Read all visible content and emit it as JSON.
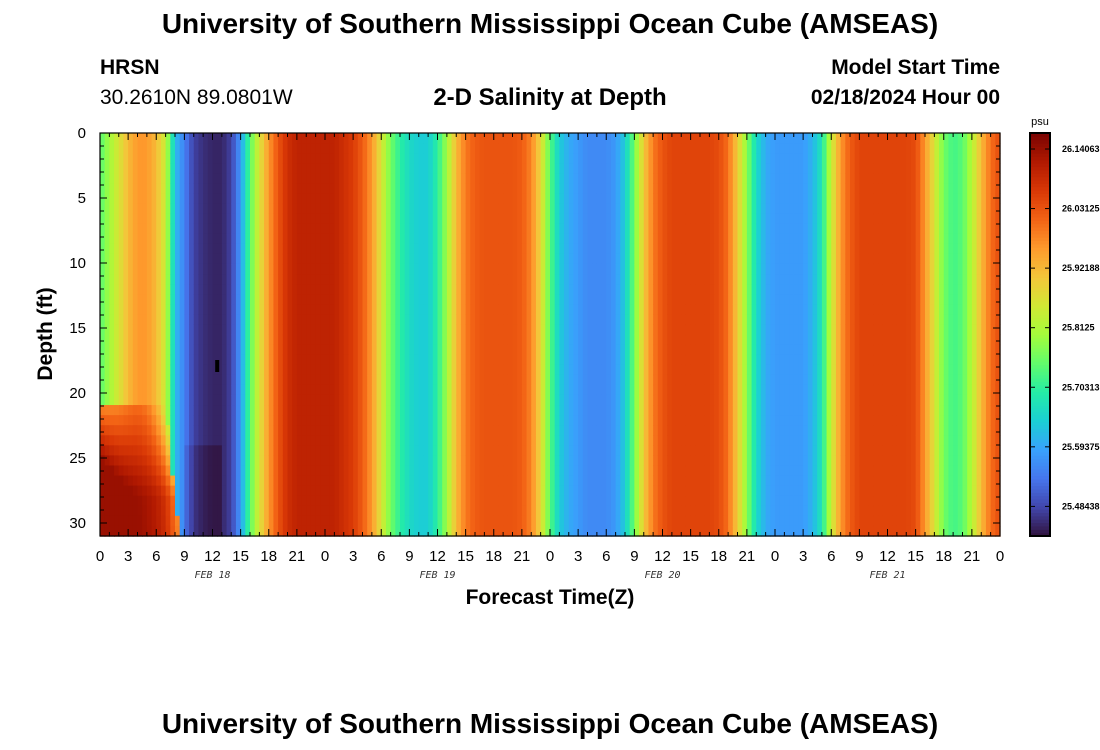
{
  "header": {
    "title": "University of Southern Mississippi Ocean Cube (AMSEAS)",
    "station": "HRSN",
    "coords": "30.2610N  89.0801W",
    "subtitle": "2-D Salinity at Depth",
    "model_start_label": "Model Start Time",
    "model_start_value": "02/18/2024 Hour 00"
  },
  "footer": {
    "title": "University of Southern Mississippi Ocean Cube (AMSEAS)"
  },
  "colorbar": {
    "unit": "psu",
    "tick_labels": [
      "26.14063",
      "26.03125",
      "25.92188",
      "25.8125",
      "25.70313",
      "25.59375",
      "25.48438"
    ],
    "tick_values": [
      26.140625,
      26.03125,
      25.921875,
      25.8125,
      25.703125,
      25.59375,
      25.484375
    ],
    "range": [
      25.43,
      26.17
    ],
    "colors": [
      "#30123b",
      "#4145ab",
      "#4675ed",
      "#39a2fc",
      "#1bcfd4",
      "#24eca6",
      "#61fc6c",
      "#a4fc3b",
      "#d1e834",
      "#f3c63a",
      "#fe9b2d",
      "#f36315",
      "#d93806",
      "#b11901",
      "#7a0402"
    ]
  },
  "chart_data": {
    "type": "heatmap",
    "xlabel": "Forecast Time(Z)",
    "ylabel": "Depth (ft)",
    "x_unit": "forecast hour",
    "xlim": [
      0,
      96
    ],
    "ylim": [
      31,
      0
    ],
    "x_tick_labels": [
      "0",
      "3",
      "6",
      "9",
      "12",
      "15",
      "18",
      "21",
      "0",
      "3",
      "6",
      "9",
      "12",
      "15",
      "18",
      "21",
      "0",
      "3",
      "6",
      "9",
      "12",
      "15",
      "18",
      "21",
      "0",
      "3",
      "6",
      "9",
      "12",
      "15",
      "18",
      "21",
      "0"
    ],
    "date_labels": [
      {
        "text": "FEB 18",
        "hour": 12
      },
      {
        "text": "FEB 19",
        "hour": 36
      },
      {
        "text": "FEB 20",
        "hour": 60
      },
      {
        "text": "FEB 21",
        "hour": 84
      }
    ],
    "y_ticks": [
      0,
      5,
      10,
      15,
      20,
      25,
      30
    ],
    "y_tick_labels": [
      "0",
      "5",
      "10",
      "15",
      "20",
      "25",
      "30"
    ],
    "time_profile": {
      "hours": [
        0,
        1,
        2,
        3,
        4,
        5,
        6,
        7,
        8,
        9,
        10,
        11,
        12,
        13,
        14,
        15,
        16,
        17,
        18,
        19,
        20,
        21,
        22,
        23,
        24,
        25,
        26,
        27,
        28,
        29,
        30,
        31,
        32,
        33,
        34,
        35,
        36,
        37,
        38,
        39,
        40,
        41,
        42,
        43,
        44,
        45,
        46,
        47,
        48,
        49,
        50,
        51,
        52,
        53,
        54,
        55,
        56,
        57,
        58,
        59,
        60,
        61,
        62,
        63,
        64,
        65,
        66,
        67,
        68,
        69,
        70,
        71,
        72,
        73,
        74,
        75,
        76,
        77,
        78,
        79,
        80,
        81,
        82,
        83,
        84,
        85,
        86,
        87,
        88,
        89,
        90,
        91,
        92,
        93,
        94,
        95,
        96
      ],
      "salinity": [
        25.74,
        25.8,
        25.86,
        25.92,
        25.96,
        25.96,
        25.92,
        25.84,
        25.62,
        25.55,
        25.48,
        25.46,
        25.45,
        25.45,
        25.48,
        25.58,
        25.74,
        25.86,
        25.96,
        26.03,
        26.08,
        26.1,
        26.1,
        26.1,
        26.1,
        26.1,
        26.08,
        26.06,
        26.02,
        25.96,
        25.86,
        25.76,
        25.7,
        25.66,
        25.64,
        25.64,
        25.7,
        25.8,
        25.92,
        25.99,
        26.02,
        26.03,
        26.03,
        26.03,
        26.03,
        26.02,
        25.98,
        25.88,
        25.74,
        25.64,
        25.6,
        25.58,
        25.56,
        25.56,
        25.56,
        25.58,
        25.64,
        25.76,
        25.9,
        25.99,
        26.03,
        26.05,
        26.05,
        26.05,
        26.05,
        26.05,
        26.04,
        26.0,
        25.9,
        25.78,
        25.66,
        25.6,
        25.58,
        25.58,
        25.58,
        25.58,
        25.61,
        25.68,
        25.84,
        25.96,
        26.02,
        26.05,
        26.05,
        26.05,
        26.05,
        26.05,
        26.05,
        26.04,
        25.96,
        25.86,
        25.76,
        25.72,
        25.74,
        25.82,
        25.92,
        26.0,
        26.04
      ]
    },
    "bottom_anomaly": {
      "description": "higher salinity near bottom at start",
      "depth_start": 21,
      "hour_end": 7,
      "max_value": 26.14
    },
    "missing_cell": {
      "hour": 12.5,
      "depth": 18
    }
  }
}
